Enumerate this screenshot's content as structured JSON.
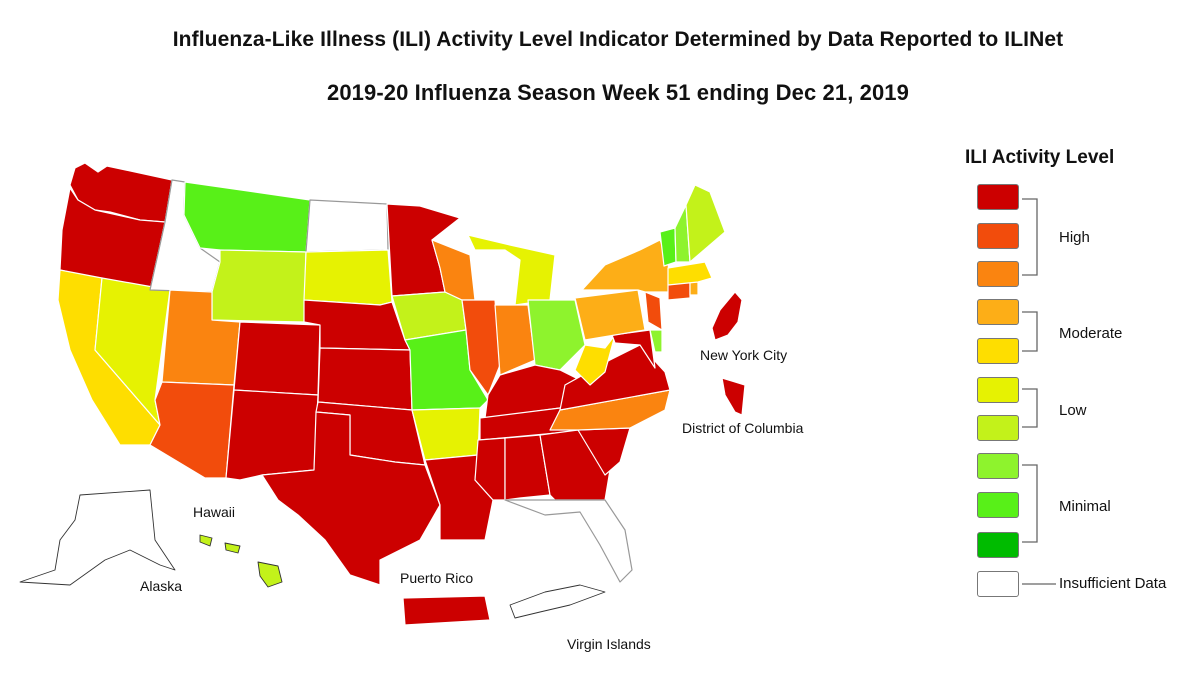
{
  "title": "Influenza-Like Illness (ILI) Activity Level Indicator Determined by Data Reported to ILINet",
  "subtitle": "2019-20 Influenza Season Week 51 ending Dec 21, 2019",
  "map_labels": {
    "new_york_city": "New York City",
    "district_of_columbia": "District of Columbia",
    "hawaii": "Hawaii",
    "alaska": "Alaska",
    "puerto_rico": "Puerto Rico",
    "virgin_islands": "Virgin Islands"
  },
  "legend": {
    "title": "ILI Activity Level",
    "levels": [
      {
        "level": 10,
        "color": "#cc0000"
      },
      {
        "level": 9,
        "color": "#f24c0c"
      },
      {
        "level": 8,
        "color": "#fa8410"
      },
      {
        "level": 7,
        "color": "#fdae17"
      },
      {
        "level": 6,
        "color": "#fede00"
      },
      {
        "level": 5,
        "color": "#e6f202"
      },
      {
        "level": 4,
        "color": "#c3f21a"
      },
      {
        "level": 3,
        "color": "#8ef32d"
      },
      {
        "level": 2,
        "color": "#58f018"
      },
      {
        "level": 1,
        "color": "#00bb00"
      },
      {
        "level": 0,
        "color": "#ffffff"
      }
    ],
    "groups": [
      {
        "label": "High"
      },
      {
        "label": "Moderate"
      },
      {
        "label": "Low"
      },
      {
        "label": "Minimal"
      },
      {
        "label": "Insufficient Data"
      }
    ]
  },
  "map_data": {
    "jurisdictions": [
      {
        "name": "Washington",
        "level": 10
      },
      {
        "name": "Oregon",
        "level": 10
      },
      {
        "name": "California",
        "level": 6
      },
      {
        "name": "Nevada",
        "level": 5
      },
      {
        "name": "Idaho",
        "level": 0
      },
      {
        "name": "Montana",
        "level": 2
      },
      {
        "name": "Wyoming",
        "level": 4
      },
      {
        "name": "Utah",
        "level": 8
      },
      {
        "name": "Arizona",
        "level": 9
      },
      {
        "name": "Colorado",
        "level": 10
      },
      {
        "name": "New Mexico",
        "level": 10
      },
      {
        "name": "North Dakota",
        "level": 0
      },
      {
        "name": "South Dakota",
        "level": 5
      },
      {
        "name": "Nebraska",
        "level": 10
      },
      {
        "name": "Kansas",
        "level": 10
      },
      {
        "name": "Oklahoma",
        "level": 10
      },
      {
        "name": "Texas",
        "level": 10
      },
      {
        "name": "Minnesota",
        "level": 10
      },
      {
        "name": "Iowa",
        "level": 4
      },
      {
        "name": "Missouri",
        "level": 2
      },
      {
        "name": "Arkansas",
        "level": 5
      },
      {
        "name": "Louisiana",
        "level": 10
      },
      {
        "name": "Wisconsin",
        "level": 8
      },
      {
        "name": "Illinois",
        "level": 9
      },
      {
        "name": "Michigan",
        "level": 5
      },
      {
        "name": "Indiana",
        "level": 8
      },
      {
        "name": "Ohio",
        "level": 3
      },
      {
        "name": "Kentucky",
        "level": 10
      },
      {
        "name": "Tennessee",
        "level": 10
      },
      {
        "name": "Mississippi",
        "level": 10
      },
      {
        "name": "Alabama",
        "level": 10
      },
      {
        "name": "Georgia",
        "level": 10
      },
      {
        "name": "Florida",
        "level": 0
      },
      {
        "name": "South Carolina",
        "level": 10
      },
      {
        "name": "North Carolina",
        "level": 8
      },
      {
        "name": "Virginia",
        "level": 10
      },
      {
        "name": "West Virginia",
        "level": 6
      },
      {
        "name": "Maryland",
        "level": 10
      },
      {
        "name": "Delaware",
        "level": 3
      },
      {
        "name": "Pennsylvania",
        "level": 7
      },
      {
        "name": "New Jersey",
        "level": 9
      },
      {
        "name": "New York",
        "level": 7
      },
      {
        "name": "Connecticut",
        "level": 9
      },
      {
        "name": "Rhode Island",
        "level": 7
      },
      {
        "name": "Massachusetts",
        "level": 6
      },
      {
        "name": "Vermont",
        "level": 2
      },
      {
        "name": "New Hampshire",
        "level": 3
      },
      {
        "name": "Maine",
        "level": 4
      },
      {
        "name": "Alaska",
        "level": 0
      },
      {
        "name": "Hawaii",
        "level": 4
      },
      {
        "name": "Puerto Rico",
        "level": 10
      },
      {
        "name": "Virgin Islands",
        "level": 0
      },
      {
        "name": "New York City",
        "level": 10
      },
      {
        "name": "District of Columbia",
        "level": 10
      }
    ]
  }
}
